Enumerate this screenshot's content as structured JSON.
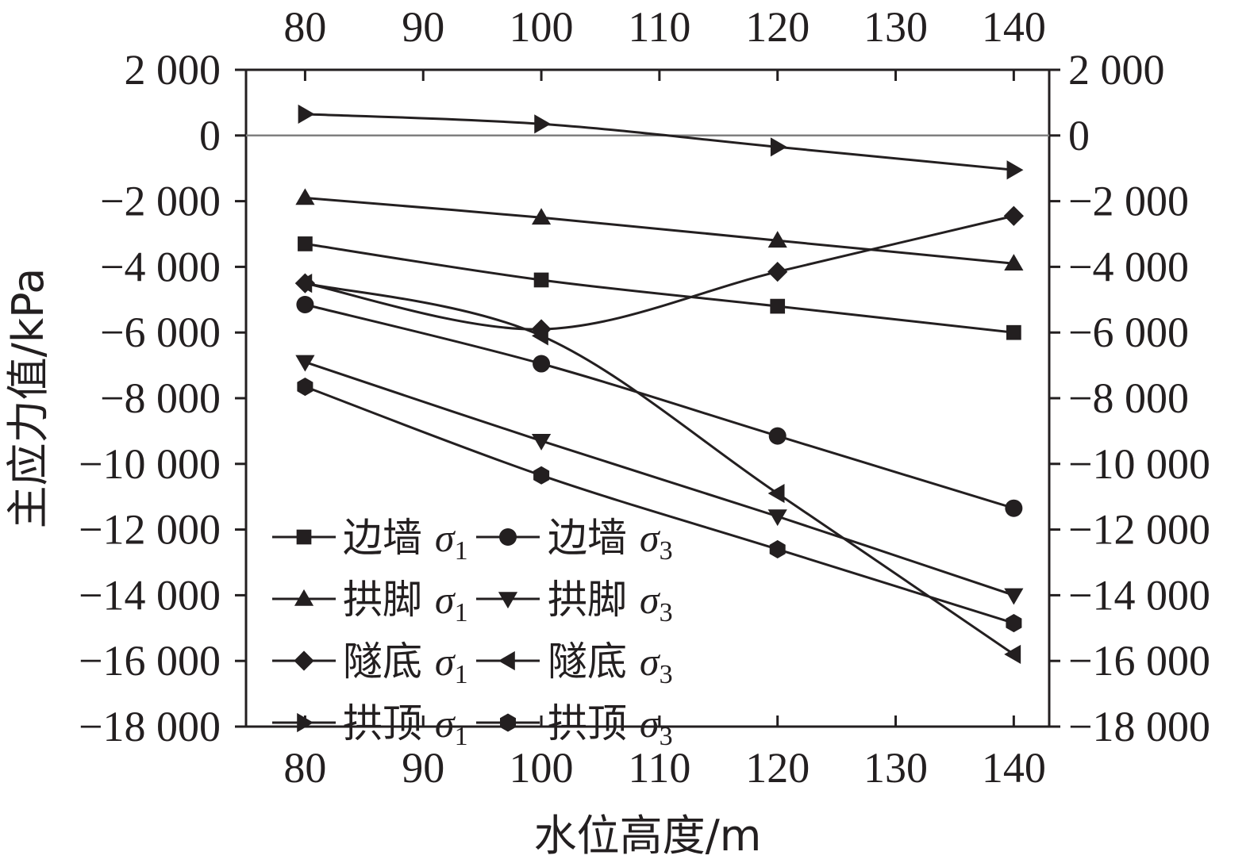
{
  "chart_data": {
    "type": "line",
    "xlabel": "水位高度/m",
    "ylabel": "主应力值/kPa",
    "xlim": [
      75,
      143
    ],
    "ylim": [
      -18000,
      2000
    ],
    "xticks": [
      80,
      90,
      100,
      110,
      120,
      130,
      140
    ],
    "xtick_labels": [
      "80",
      "90",
      "100",
      "110",
      "120",
      "130",
      "140"
    ],
    "yticks": [
      2000,
      0,
      -2000,
      -4000,
      -6000,
      -8000,
      -10000,
      -12000,
      -14000,
      -16000,
      -18000
    ],
    "ytick_labels": [
      "2 000",
      "0",
      "−2 000",
      "−4 000",
      "−6 000",
      "−8 000",
      "−10 000",
      "−12 000",
      "−14 000",
      "−16 000",
      "−18 000"
    ],
    "secondary_axes": "top-and-right mirror",
    "zero_line": true,
    "legend_position": "bottom-left",
    "x": [
      80,
      100,
      120,
      140
    ],
    "series": [
      {
        "name": "边墙",
        "sym": "σ",
        "sub": "1",
        "marker": "square",
        "values": [
          -3300,
          -4400,
          -5200,
          -6000
        ]
      },
      {
        "name": "边墙",
        "sym": "σ",
        "sub": "3",
        "marker": "circle",
        "values": [
          -5150,
          -6950,
          -9150,
          -11350
        ]
      },
      {
        "name": "拱脚",
        "sym": "σ",
        "sub": "1",
        "marker": "triangle-up",
        "values": [
          -1900,
          -2500,
          -3200,
          -3900
        ]
      },
      {
        "name": "拱脚",
        "sym": "σ",
        "sub": "3",
        "marker": "triangle-down",
        "values": [
          -6900,
          -9300,
          -11600,
          -14000
        ]
      },
      {
        "name": "隧底",
        "sym": "σ",
        "sub": "1",
        "marker": "diamond",
        "values": [
          -4500,
          -5900,
          -4150,
          -2450
        ]
      },
      {
        "name": "隧底",
        "sym": "σ",
        "sub": "3",
        "marker": "triangle-left",
        "values": [
          -4500,
          -6100,
          -10900,
          -15800
        ]
      },
      {
        "name": "拱顶",
        "sym": "σ",
        "sub": "1",
        "marker": "triangle-right",
        "values": [
          650,
          350,
          -350,
          -1050
        ]
      },
      {
        "name": "拱顶",
        "sym": "σ",
        "sub": "3",
        "marker": "hexagon",
        "values": [
          -7650,
          -10350,
          -12600,
          -14850
        ]
      }
    ],
    "colors": {
      "ink": "#231f20",
      "zero_line": "#808080"
    }
  }
}
